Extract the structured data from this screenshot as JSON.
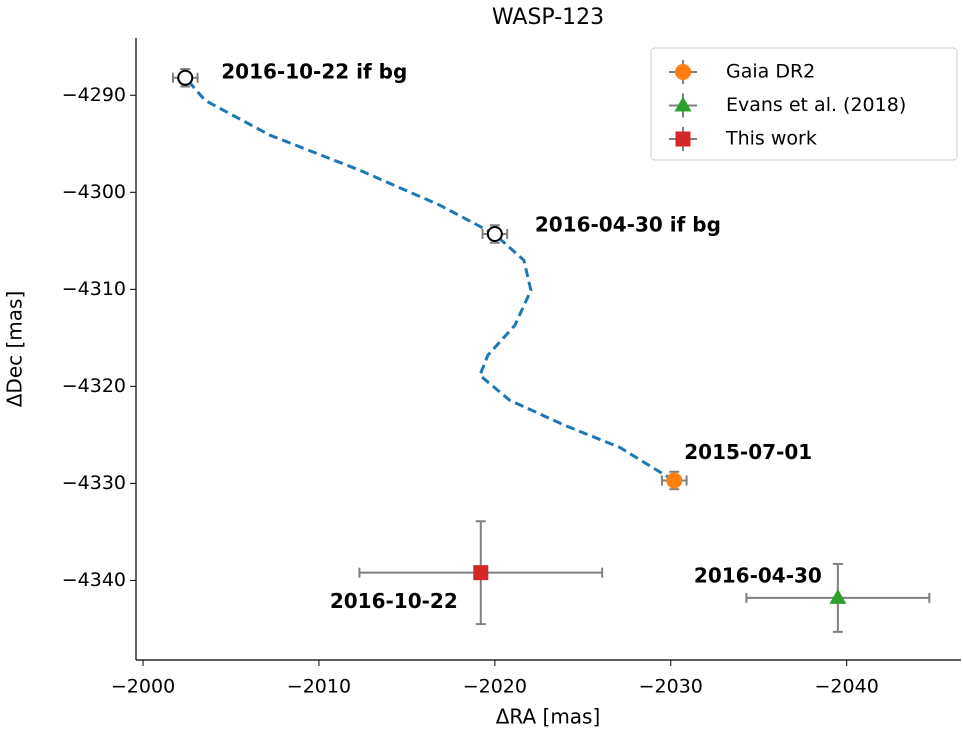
{
  "chart_data": {
    "type": "scatter",
    "title": "WASP-123",
    "x_label": "ΔRA [mas]",
    "y_label": "ΔDec [mas]",
    "xlim": [
      -1999.6,
      -2046.5
    ],
    "ylim": [
      -4348.2,
      -4284.1
    ],
    "xticks": [
      {
        "value": -2000,
        "label": "−2000"
      },
      {
        "value": -2010,
        "label": "−2010"
      },
      {
        "value": -2020,
        "label": "−2020"
      },
      {
        "value": -2030,
        "label": "−2030"
      },
      {
        "value": -2040,
        "label": "−2040"
      }
    ],
    "yticks": [
      {
        "value": -4340,
        "label": "−4340"
      },
      {
        "value": -4330,
        "label": "−4330"
      },
      {
        "value": -4320,
        "label": "−4320"
      },
      {
        "value": -4310,
        "label": "−4310"
      },
      {
        "value": -4300,
        "label": "−4300"
      },
      {
        "value": -4290,
        "label": "−4290"
      }
    ],
    "legend": "upper right",
    "errorbar_color": "#808080",
    "series": [
      {
        "name": "Gaia DR2",
        "color": "#ff7f0e",
        "marker": "circle",
        "x": [
          -2030.2
        ],
        "values": [
          -4329.7
        ],
        "xerr": [
          0.7
        ],
        "yerr": [
          0.9
        ],
        "labels": [
          "2015-07-01"
        ]
      },
      {
        "name": "Evans et al. (2018)",
        "color": "#2ca02c",
        "marker": "triangle",
        "x": [
          -2039.5
        ],
        "values": [
          -4341.8
        ],
        "xerr": [
          5.2
        ],
        "yerr": [
          3.5
        ],
        "labels": [
          "2016-04-30"
        ]
      },
      {
        "name": "This work",
        "color": "#d62728",
        "marker": "square",
        "x": [
          -2019.2
        ],
        "values": [
          -4339.2
        ],
        "xerr": [
          6.9
        ],
        "yerr": [
          5.3
        ],
        "labels": [
          "2016-10-22"
        ]
      }
    ],
    "background": {
      "color": "#000000",
      "x": [
        -2002.4,
        -2020.0
      ],
      "values": [
        -4288.2,
        -4304.3
      ],
      "xerr": [
        0.7,
        0.7
      ],
      "yerr": [
        0.9,
        0.9
      ],
      "labels": [
        "2016-10-22 if bg",
        "2016-04-30 if bg"
      ]
    },
    "track": {
      "color": "#1f77b4",
      "x": [
        -2030.17,
        -2027.1,
        -2023.98,
        -2020.85,
        -2019.15,
        -2019.6,
        -2021.14,
        -2022.05,
        -2021.65,
        -2020.0,
        -2016.88,
        -2012.33,
        -2007.22,
        -2003.52,
        -2002.44
      ],
      "y": [
        -4329.69,
        -4326.29,
        -4324.02,
        -4321.44,
        -4318.87,
        -4316.8,
        -4313.71,
        -4310.1,
        -4307.01,
        -4304.33,
        -4301.34,
        -4297.73,
        -4294.12,
        -4290.52,
        -4288.25
      ]
    }
  }
}
